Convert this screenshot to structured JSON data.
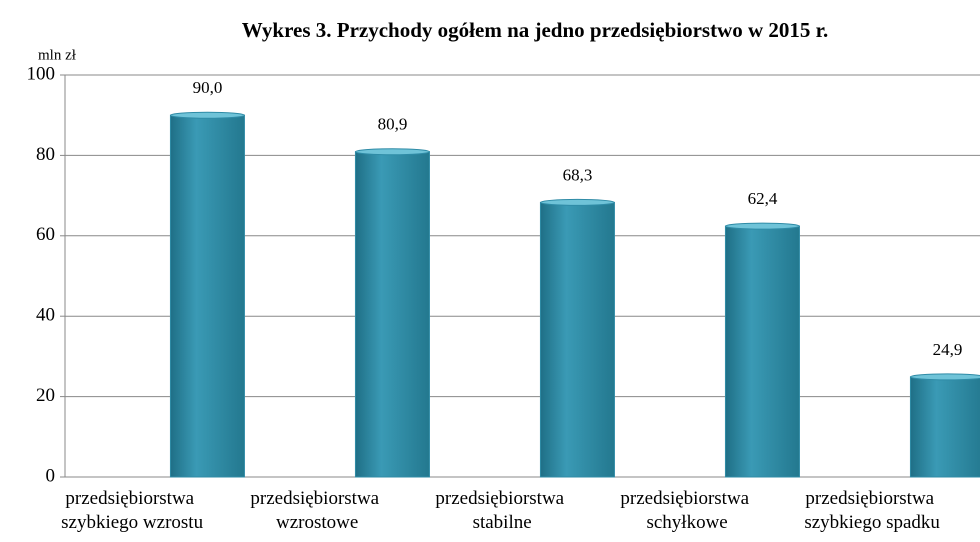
{
  "chart_data": {
    "type": "bar",
    "title": "Wykres 3. Przychody ogółem na jedno przedsiębiorstwo w 2015 r.",
    "y_label": "mln zł",
    "categories": [
      "przedsiębiorstwa szybkiego wzrostu",
      "przedsiębiorstwa wzrostowe",
      "przedsiębiorstwa stabilne",
      "przedsiębiorstwa schyłkowe",
      "przedsiębiorstwa szybkiego spadku"
    ],
    "values": [
      90.0,
      80.9,
      68.3,
      62.4,
      24.9
    ],
    "value_labels": [
      "90,0",
      "80,9",
      "68,3",
      "62,4",
      "24,9"
    ],
    "color": "#2f8ba6",
    "ylim": [
      0,
      100
    ],
    "yticks": [
      0,
      20,
      40,
      60,
      80,
      100
    ],
    "grid": true
  }
}
